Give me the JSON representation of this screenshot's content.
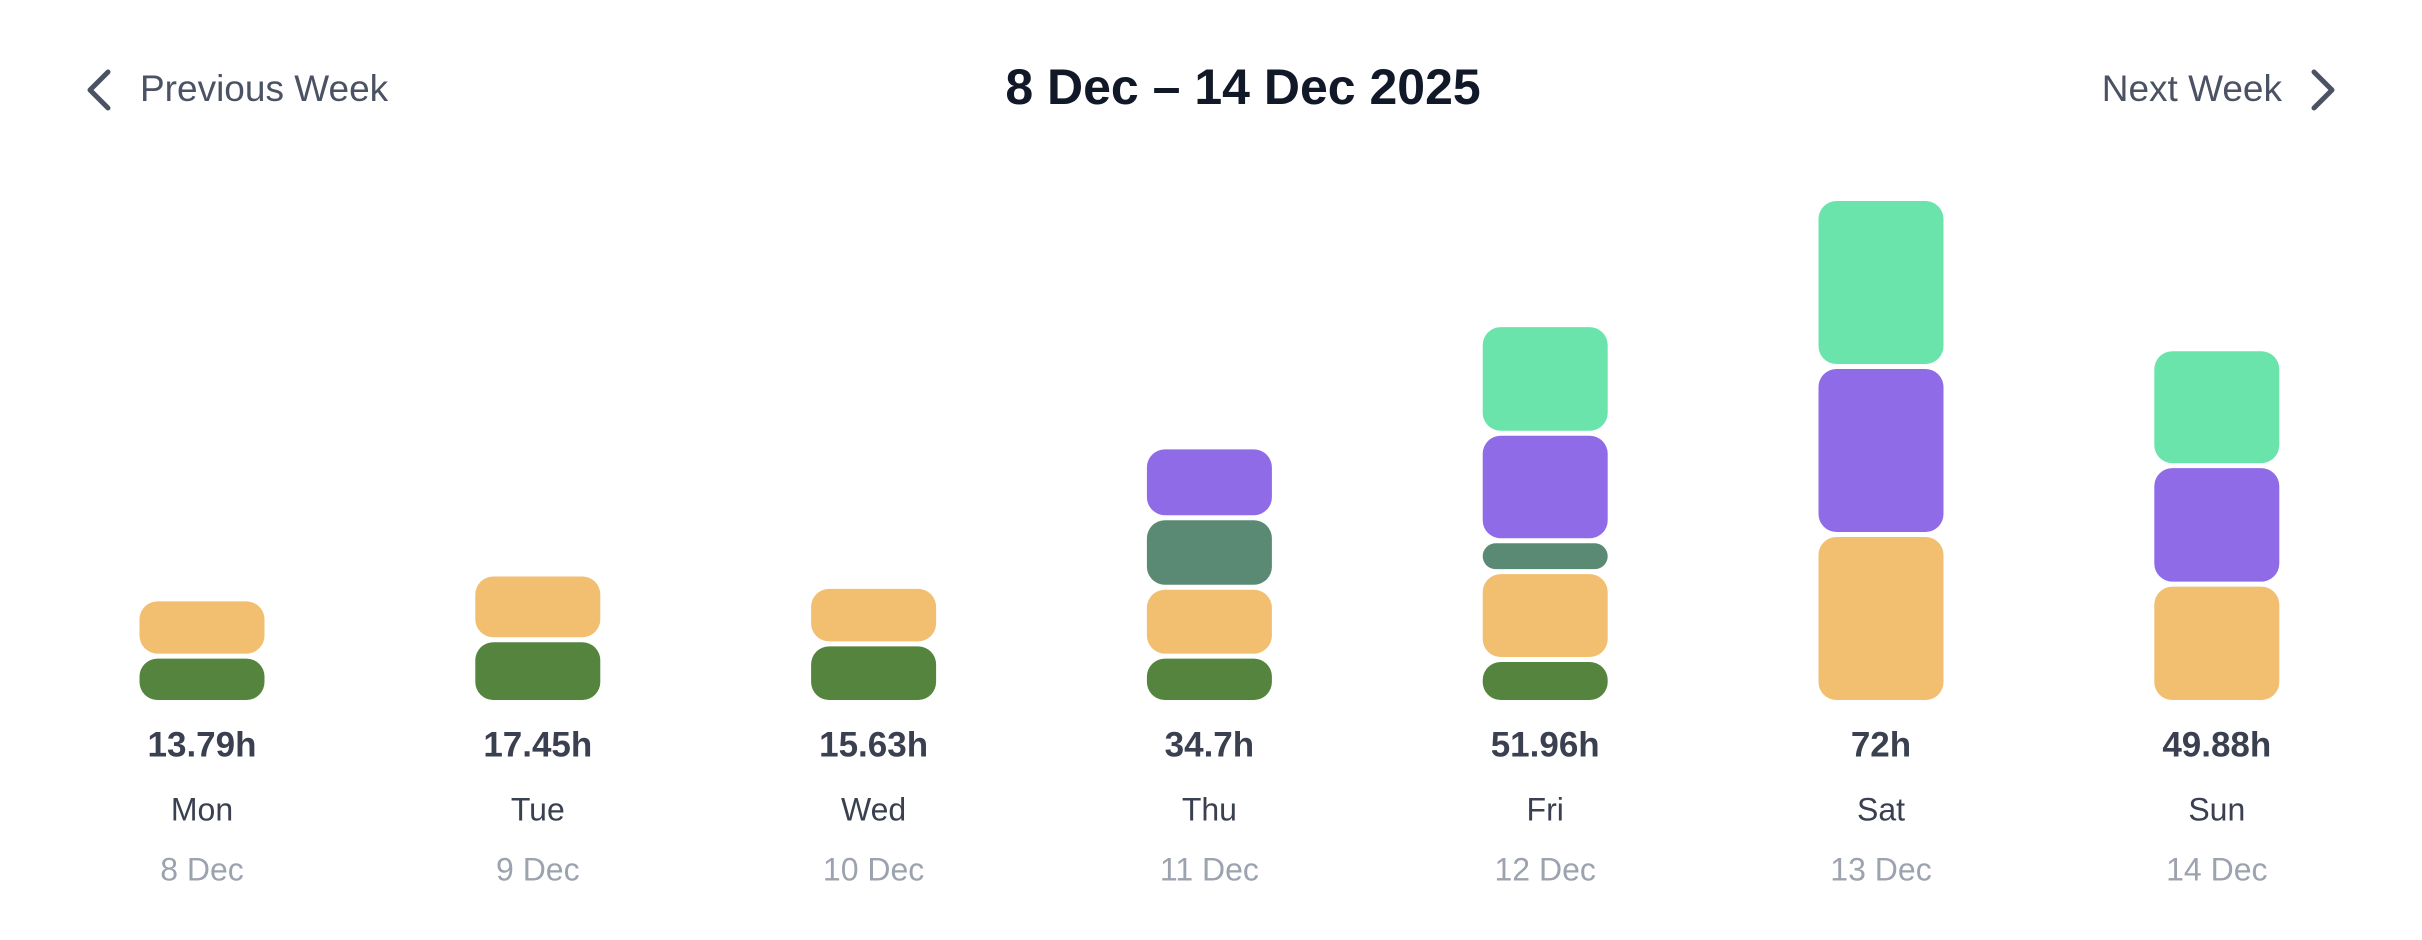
{
  "nav": {
    "previous": "Previous Week",
    "next": "Next Week"
  },
  "chart_data": {
    "type": "bar",
    "stacked": true,
    "title": "8 Dec – 14 Dec 2025",
    "categories": [
      "Mon",
      "Tue",
      "Wed",
      "Thu",
      "Fri",
      "Sat",
      "Sun"
    ],
    "dates": [
      "8 Dec",
      "9 Dec",
      "10 Dec",
      "11 Dec",
      "12 Dec",
      "13 Dec",
      "14 Dec"
    ],
    "totals": [
      13.79,
      17.45,
      15.63,
      34.7,
      51.96,
      72,
      49.88
    ],
    "total_labels": [
      "13.79h",
      "17.45h",
      "15.63h",
      "34.7h",
      "51.96h",
      "72h",
      "49.88h"
    ],
    "series": [
      {
        "color": "#55843f",
        "values": [
          6.1,
          8.5,
          7.9,
          6.1,
          5.6,
          null,
          null
        ]
      },
      {
        "color": "#f2be70",
        "values": [
          7.69,
          8.95,
          7.73,
          9.4,
          12.2,
          24,
          16.7
        ]
      },
      {
        "color": "#5b8a74",
        "values": [
          null,
          null,
          null,
          9.5,
          3.8,
          null,
          null
        ]
      },
      {
        "color": "#8f6be8",
        "values": [
          null,
          null,
          null,
          9.7,
          15.1,
          24,
          16.7
        ]
      },
      {
        "color": "#6ae4ab",
        "values": [
          null,
          null,
          null,
          null,
          15.26,
          24,
          16.48
        ]
      }
    ]
  }
}
